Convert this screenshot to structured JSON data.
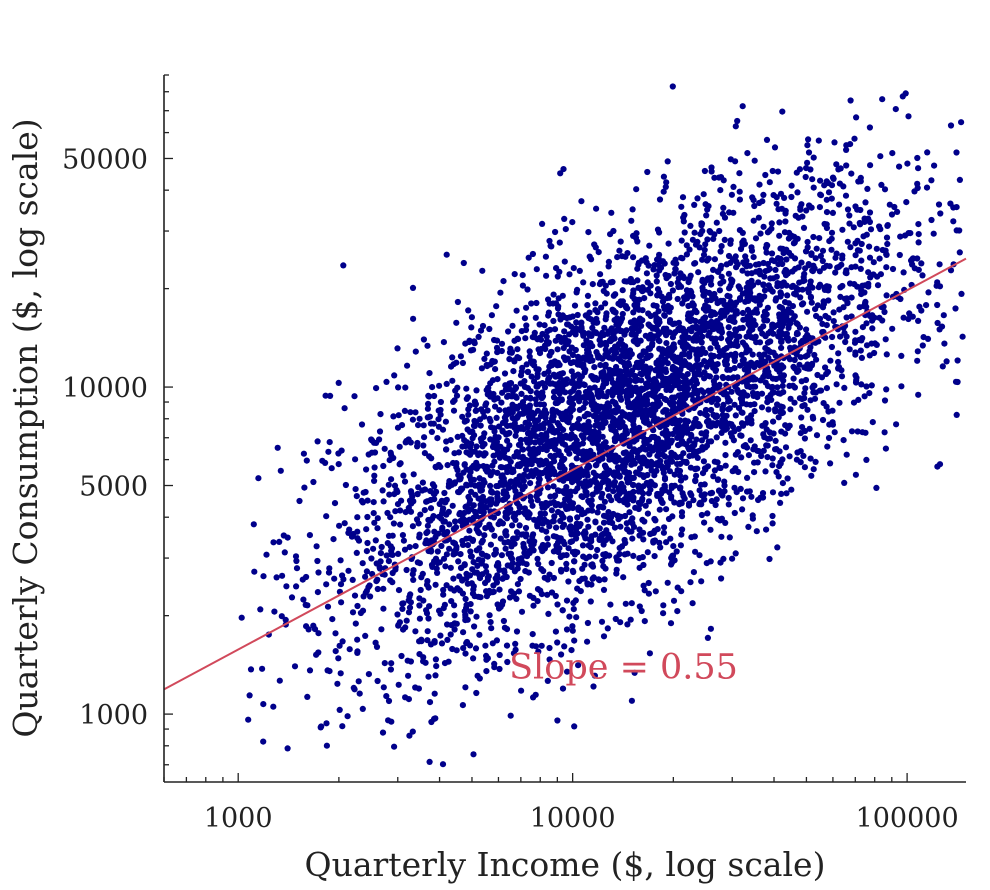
{
  "chart_data": {
    "type": "scatter",
    "title": "",
    "xlabel": "Quarterly Income ($, log scale)",
    "ylabel": "Quarterly Consumption ($, log scale)",
    "x_scale": "log",
    "y_scale": "log",
    "xlim": [
      600,
      150000
    ],
    "ylim": [
      620,
      90000
    ],
    "x_ticks": [
      {
        "value": 1000,
        "label": "1000"
      },
      {
        "value": 10000,
        "label": "10000"
      },
      {
        "value": 100000,
        "label": "100000"
      }
    ],
    "y_ticks": [
      {
        "value": 1000,
        "label": "1000"
      },
      {
        "value": 5000,
        "label": "5000"
      },
      {
        "value": 10000,
        "label": "10000"
      },
      {
        "value": 50000,
        "label": "50000"
      }
    ],
    "grid": false,
    "marker_color": "#00008B",
    "n_points_approx": 5000,
    "point_distribution": {
      "description": "bivariate log-normal cloud centered near income 14000, consumption 8000",
      "center": {
        "x": 14000,
        "y": 8000
      },
      "x_range": [
        1000,
        150000
      ],
      "y_range": [
        700,
        85000
      ]
    },
    "fit_line": {
      "slope": 0.55,
      "color": "#D1495B",
      "points": [
        {
          "x": 600,
          "y": 1190
        },
        {
          "x": 150000,
          "y": 24700
        }
      ]
    },
    "annotations": [
      {
        "text": "Slope = 0.55",
        "color": "#D1495B",
        "x": 14000,
        "y": 1400
      }
    ]
  }
}
